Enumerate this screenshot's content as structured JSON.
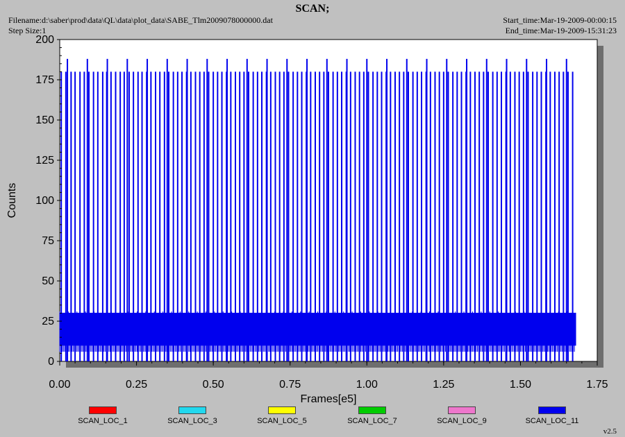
{
  "header": {
    "title": "SCAN;",
    "filename": "Filename:d:\\saber\\prod\\data\\QL\\data\\plot_data\\SABE_Tlm2009078000000.dat",
    "step_size": "Step Size:1",
    "start_time": "Start_time:Mar-19-2009-00:00:15",
    "end_time": "End_time:Mar-19-2009-15:31:23"
  },
  "version": "v2.5",
  "chart_data": {
    "type": "line",
    "title": "SCAN;",
    "xlabel": "Frames[e5]",
    "ylabel": "Counts",
    "xlim": [
      0,
      1.75
    ],
    "ylim": [
      0,
      200
    ],
    "xticks": [
      "0.00",
      "0.25",
      "0.50",
      "0.75",
      "1.00",
      "1.25",
      "1.50",
      "1.75"
    ],
    "yticks": [
      "0",
      "25",
      "50",
      "75",
      "100",
      "125",
      "150",
      "175",
      "200"
    ],
    "grid": false,
    "legend_placement": "bottom",
    "series": [
      {
        "name": "SCAN_LOC_1",
        "color": "#ff0000",
        "values": []
      },
      {
        "name": "SCAN_LOC_3",
        "color": "#22d8ee",
        "values": []
      },
      {
        "name": "SCAN_LOC_5",
        "color": "#ffff00",
        "values": []
      },
      {
        "name": "SCAN_LOC_7",
        "color": "#00cc00",
        "values": []
      },
      {
        "name": "SCAN_LOC_9",
        "color": "#ee77cc",
        "values": []
      },
      {
        "name": "SCAN_LOC_11",
        "color": "#0000ee",
        "x_range": [
          0.0,
          1.68
        ],
        "baseline_band": [
          10,
          30
        ],
        "spike_level": 180,
        "tall_spike_level": 188,
        "spike_x": [
          0.005,
          0.02,
          0.037,
          0.05,
          0.066,
          0.08,
          0.095,
          0.11,
          0.124,
          0.14,
          0.153,
          0.167,
          0.182,
          0.197,
          0.21,
          0.226,
          0.24,
          0.255,
          0.268,
          0.283,
          0.297,
          0.312,
          0.326,
          0.341,
          0.355,
          0.37,
          0.384,
          0.398,
          0.413,
          0.427,
          0.442,
          0.456,
          0.47,
          0.485,
          0.5,
          0.514,
          0.528,
          0.543,
          0.557,
          0.572,
          0.586,
          0.6,
          0.615,
          0.63,
          0.644,
          0.658,
          0.673,
          0.687,
          0.702,
          0.716,
          0.73,
          0.745,
          0.76,
          0.774,
          0.788,
          0.803,
          0.817,
          0.832,
          0.846,
          0.86,
          0.875,
          0.89,
          0.904,
          0.918,
          0.933,
          0.947,
          0.962,
          0.976,
          0.99,
          1.005,
          1.02,
          1.034,
          1.048,
          1.063,
          1.077,
          1.092,
          1.106,
          1.12,
          1.135,
          1.15,
          1.164,
          1.178,
          1.193,
          1.207,
          1.222,
          1.236,
          1.25,
          1.265,
          1.28,
          1.294,
          1.308,
          1.323,
          1.337,
          1.352,
          1.366,
          1.38,
          1.395,
          1.41,
          1.424,
          1.438,
          1.453,
          1.467,
          1.482,
          1.496,
          1.51,
          1.525,
          1.54,
          1.554,
          1.568,
          1.583,
          1.597,
          1.612,
          1.626,
          1.64,
          1.655,
          1.67
        ],
        "tall_spike_x": [
          0.025,
          0.09,
          0.155,
          0.22,
          0.285,
          0.35,
          0.415,
          0.48,
          0.545,
          0.61,
          0.675,
          0.74,
          0.805,
          0.87,
          0.935,
          1.0,
          1.065,
          1.13,
          1.195,
          1.26,
          1.325,
          1.39,
          1.455,
          1.52,
          1.585,
          1.65
        ]
      }
    ]
  }
}
